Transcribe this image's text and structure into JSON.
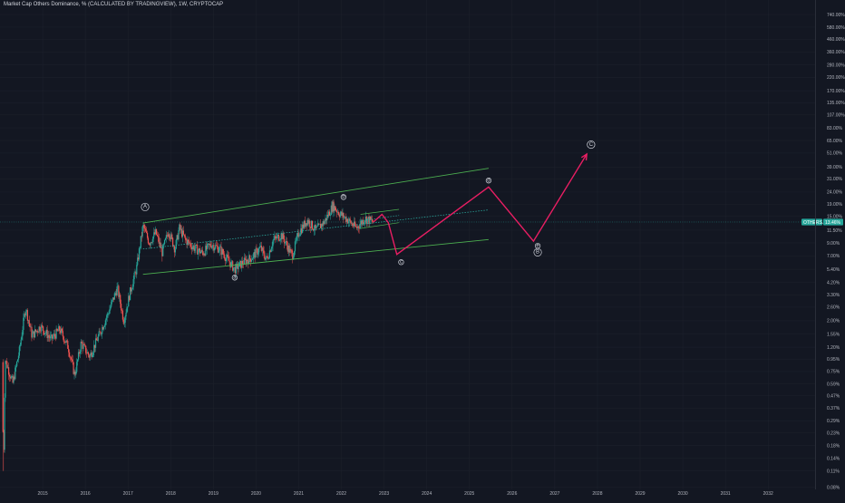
{
  "colors": {
    "background": "#131722",
    "grid": "#1e222d",
    "up_candle": "#26a69a",
    "down_candle": "#ef5350",
    "channel": "#4caf50",
    "midline": "#2db6a8",
    "projection": "#e91e63",
    "price_badge": "#26a69a",
    "axis_text": "#b2b5be"
  },
  "chart_data": {
    "type": "candlestick",
    "title": "Market Cap Others Dominance, % (CALCULATED BY TRADINGVIEW), 1W, CRYPTOCAP",
    "price_scale": "log",
    "ylim": [
      0.077,
      980
    ],
    "x_range": [
      2014.0,
      2033.1
    ],
    "x_ticks": [
      "2015",
      "2016",
      "2017",
      "2018",
      "2019",
      "2020",
      "2021",
      "2022",
      "2023",
      "2024",
      "2025",
      "2026",
      "2027",
      "2028",
      "2029",
      "2030",
      "2031",
      "2032"
    ],
    "y_ticks": [
      "740.00%",
      "580.00%",
      "460.00%",
      "360.00%",
      "280.00%",
      "220.00%",
      "170.00%",
      "135.00%",
      "107.00%",
      "83.00%",
      "65.00%",
      "51.00%",
      "39.00%",
      "31.00%",
      "24.00%",
      "19.00%",
      "15.00%",
      "11.50%",
      "9.00%",
      "7.00%",
      "5.40%",
      "4.20%",
      "3.30%",
      "2.60%",
      "2.00%",
      "1.55%",
      "1.20%",
      "0.95%",
      "0.75%",
      "0.59%",
      "0.47%",
      "0.37%",
      "0.29%",
      "0.23%",
      "0.18%",
      "0.14%",
      "0.11%",
      "0.08%"
    ],
    "current_price": {
      "symbol": "OTHERS.D",
      "value_label": "13.46%",
      "value": 13.46
    },
    "price_path": [
      [
        2014.05,
        0.9
      ],
      [
        2014.08,
        0.11
      ],
      [
        2014.12,
        0.95
      ],
      [
        2014.3,
        0.6
      ],
      [
        2014.45,
        1.1
      ],
      [
        2014.6,
        2.6
      ],
      [
        2014.75,
        1.5
      ],
      [
        2014.95,
        1.8
      ],
      [
        2015.2,
        1.4
      ],
      [
        2015.4,
        1.7
      ],
      [
        2015.6,
        1.2
      ],
      [
        2015.75,
        0.7
      ],
      [
        2015.9,
        1.3
      ],
      [
        2016.1,
        1.0
      ],
      [
        2016.35,
        1.6
      ],
      [
        2016.55,
        2.4
      ],
      [
        2016.75,
        3.8
      ],
      [
        2016.9,
        2.0
      ],
      [
        2017.05,
        3.5
      ],
      [
        2017.2,
        5.5
      ],
      [
        2017.35,
        12.5
      ],
      [
        2017.5,
        9.0
      ],
      [
        2017.65,
        11.0
      ],
      [
        2017.8,
        7.5
      ],
      [
        2017.95,
        11.5
      ],
      [
        2018.1,
        8.0
      ],
      [
        2018.2,
        12.0
      ],
      [
        2018.35,
        9.5
      ],
      [
        2018.55,
        8.2
      ],
      [
        2018.75,
        7.4
      ],
      [
        2018.95,
        8.8
      ],
      [
        2019.15,
        8.0
      ],
      [
        2019.3,
        6.8
      ],
      [
        2019.5,
        5.4
      ],
      [
        2019.7,
        6.2
      ],
      [
        2019.9,
        6.8
      ],
      [
        2020.1,
        8.2
      ],
      [
        2020.25,
        6.5
      ],
      [
        2020.4,
        9.5
      ],
      [
        2020.6,
        10.5
      ],
      [
        2020.85,
        7.0
      ],
      [
        2021.0,
        11.0
      ],
      [
        2021.2,
        14.0
      ],
      [
        2021.4,
        11.5
      ],
      [
        2021.6,
        13.5
      ],
      [
        2021.8,
        18.5
      ],
      [
        2021.95,
        16.0
      ],
      [
        2022.15,
        14.0
      ],
      [
        2022.35,
        12.0
      ],
      [
        2022.55,
        14.5
      ],
      [
        2022.75,
        13.46
      ]
    ],
    "channel_upper": [
      [
        2017.35,
        13.2
      ],
      [
        2025.45,
        38.0
      ]
    ],
    "channel_lower": [
      [
        2017.35,
        4.9
      ],
      [
        2025.45,
        9.6
      ]
    ],
    "channel_mid": [
      [
        2017.35,
        8.0
      ],
      [
        2025.45,
        17.0
      ]
    ],
    "mini_channel_upper": [
      [
        2022.45,
        15.6
      ],
      [
        2023.35,
        17.2
      ]
    ],
    "mini_channel_lower": [
      [
        2022.45,
        11.9
      ],
      [
        2023.35,
        13.3
      ]
    ],
    "mini_channel_mid": [
      [
        2022.45,
        13.8
      ],
      [
        2023.35,
        15.3
      ]
    ],
    "projection": [
      [
        2022.75,
        13.46
      ],
      [
        2022.95,
        15.6
      ],
      [
        2023.1,
        13.3
      ],
      [
        2023.3,
        7.2
      ],
      [
        2025.45,
        26.5
      ],
      [
        2026.5,
        9.3
      ],
      [
        2027.75,
        50.0
      ]
    ],
    "annotations": [
      {
        "label": "A",
        "x": 2017.4,
        "y": 18.0,
        "style": "circle"
      },
      {
        "label": "a",
        "x": 2019.5,
        "y": 4.6,
        "style": "small"
      },
      {
        "label": "b",
        "x": 2022.05,
        "y": 21.8,
        "style": "small"
      },
      {
        "label": "c",
        "x": 2023.4,
        "y": 6.2,
        "style": "small"
      },
      {
        "label": "d",
        "x": 2025.45,
        "y": 30.0,
        "style": "small"
      },
      {
        "label": "e",
        "x": 2026.6,
        "y": 8.5,
        "style": "small"
      },
      {
        "label": "B",
        "x": 2026.6,
        "y": 7.5,
        "style": "circle"
      },
      {
        "label": "C",
        "x": 2027.85,
        "y": 60.0,
        "style": "circle"
      }
    ]
  }
}
